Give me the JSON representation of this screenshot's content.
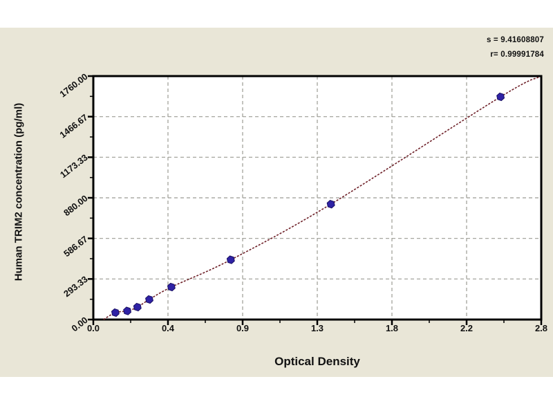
{
  "chart_data": {
    "type": "scatter",
    "title": "",
    "xlabel": "Optical Density",
    "ylabel": "Human TRIM2 concentration (pg/ml)",
    "annotation": {
      "line1": "s = 9.41608807",
      "line2": "r= 0.99991784"
    },
    "x_axis": {
      "min": 0,
      "max": 2.64,
      "ticks": [
        "0.0",
        "0.4",
        "0.9",
        "1.3",
        "1.8",
        "2.2",
        "2.8"
      ],
      "minor_ticks_between": 1
    },
    "y_axis": {
      "min": 0,
      "max": 1760,
      "ticks": [
        "0.00",
        "293.33",
        "586.67",
        "880.00",
        "1173.33",
        "1466.67",
        "1760.00"
      ],
      "minor_ticks_between": 1
    },
    "grid": "dashed both axes at major ticks",
    "legend_position": "none",
    "points": [
      [
        0.13,
        50
      ],
      [
        0.2,
        62
      ],
      [
        0.26,
        90
      ],
      [
        0.33,
        145
      ],
      [
        0.46,
        235
      ],
      [
        0.81,
        432
      ],
      [
        1.4,
        834
      ],
      [
        2.4,
        1610
      ]
    ],
    "curve_start": [
      0.06,
      0
    ],
    "curve_end": [
      2.63,
      1755
    ],
    "colors": {
      "panel_bg": "#e9e6d7",
      "plot_bg": "#ffffff",
      "axis": "#000000",
      "grid": "#9b9b93",
      "curve": "#6e2028",
      "point": "#2f22a5",
      "point_edge": "#191060",
      "text": "#111111"
    }
  }
}
